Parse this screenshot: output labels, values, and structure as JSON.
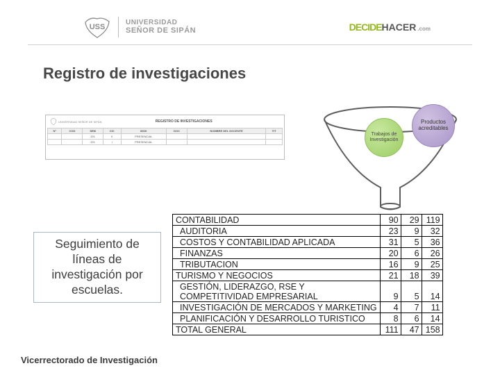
{
  "header": {
    "left_logo": {
      "line1": "UNIVERSIDAD",
      "line2": "SEÑOR DE SIPÁN"
    },
    "right_logo": {
      "part1": "DECIDE",
      "part2": "HACER",
      "suffix": ".com"
    }
  },
  "title": "Registro de investigaciones",
  "registro_thumb": {
    "heading": "REGISTRO DE INVESTIGACIONES",
    "uni": "UNIVERSIDAD SEÑOR DE SIPÁN"
  },
  "funnel": {
    "bubble1": "Trabajos de Investigación",
    "bubble2": "Productos acreditables",
    "colors": {
      "green": "#9bcd62",
      "purple": "#a995c9",
      "outline": "#5c5c5c"
    }
  },
  "sidebar": {
    "text": "Seguimiento de líneas de investigación por escuelas."
  },
  "table": {
    "rows": [
      {
        "label": "CONTABILIDAD",
        "indent": false,
        "vals": [
          90,
          29,
          119
        ]
      },
      {
        "label": "AUDITORIA",
        "indent": true,
        "vals": [
          23,
          9,
          32
        ]
      },
      {
        "label": "COSTOS Y CONTABILIDAD APLICADA",
        "indent": true,
        "vals": [
          31,
          5,
          36
        ]
      },
      {
        "label": "FINANZAS",
        "indent": true,
        "vals": [
          20,
          6,
          26
        ]
      },
      {
        "label": "TRIBUTACION",
        "indent": true,
        "vals": [
          16,
          9,
          25
        ]
      },
      {
        "label": "TURISMO Y NEGOCIOS",
        "indent": false,
        "vals": [
          21,
          18,
          39
        ]
      },
      {
        "label": "GESTIÓN, LIDERAZGO, RSE Y COMPETITIVIDAD EMPRESARIAL",
        "indent": true,
        "vals": [
          9,
          5,
          14
        ]
      },
      {
        "label": "INVESTIGACIÓN DE MERCADOS Y MARKETING",
        "indent": true,
        "vals": [
          4,
          7,
          11
        ]
      },
      {
        "label": "PLANIFICACIÓN Y DESARROLLO TURISTICO",
        "indent": true,
        "vals": [
          8,
          6,
          14
        ]
      },
      {
        "label": "TOTAL GENERAL",
        "indent": false,
        "vals": [
          111,
          47,
          158
        ]
      }
    ],
    "wrap_row_index": 6
  },
  "footer": "Vicerrectorado de Investigación"
}
